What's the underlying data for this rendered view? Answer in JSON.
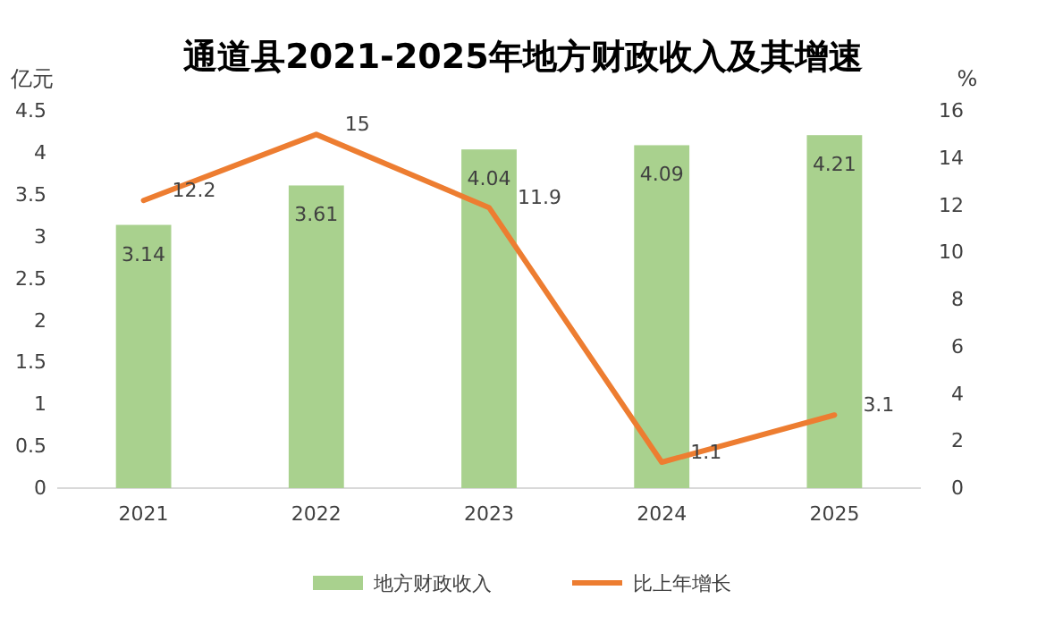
{
  "chart_data": {
    "type": "bar",
    "title": "通道县2021-2025年地方财政收入及其增速",
    "ylabel": "亿元",
    "y2label": "%",
    "categories": [
      "2021",
      "2022",
      "2023",
      "2024",
      "2025"
    ],
    "series": [
      {
        "name": "地方财政收入",
        "color": "#a9d18e",
        "values": [
          3.14,
          3.61,
          4.04,
          4.09,
          4.21
        ]
      },
      {
        "name": "比上年增长",
        "type": "line",
        "axis": "y2",
        "color": "#ed7d31",
        "values": [
          12.2,
          15,
          11.9,
          1.1,
          3.1
        ]
      }
    ],
    "ylim": [
      0,
      4.5
    ],
    "yticks": [
      0,
      0.5,
      1,
      1.5,
      2,
      2.5,
      3,
      3.5,
      4,
      4.5
    ],
    "y2lim": [
      0,
      16
    ],
    "y2ticks": [
      0,
      2,
      4,
      6,
      8,
      10,
      12,
      14,
      16
    ],
    "data_labels": true,
    "legend": "bottom",
    "grid": false,
    "marker": "none",
    "line_style": "solid"
  }
}
